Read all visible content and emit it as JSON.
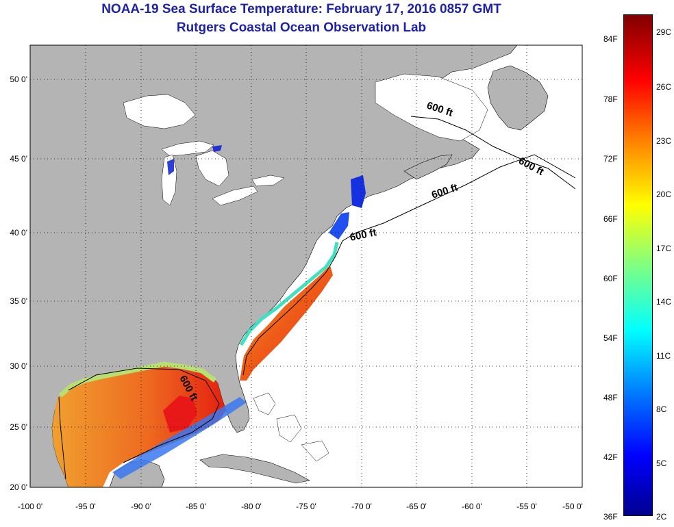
{
  "title": "NOAA-19 Sea Surface Temperature:  February 17, 2016 0857 GMT",
  "subtitle": "Rutgers Coastal Ocean Observation Lab",
  "colors": {
    "title": "#1e22a8",
    "land": "#b4b4b4",
    "ocean_nodata": "#ffffff",
    "lake": "#ffffff"
  },
  "map": {
    "lon_range": [
      -100,
      -50
    ],
    "lat_range": [
      20,
      52
    ],
    "x_ticks": [
      "-100 0'",
      "-95 0'",
      "-90 0'",
      "-85 0'",
      "-80 0'",
      "-75 0'",
      "-70 0'",
      "-65 0'",
      "-60 0'",
      "-55 0'",
      "-50 0'"
    ],
    "y_ticks": [
      "20 0'",
      "25 0'",
      "30 0'",
      "35 0'",
      "40 0'",
      "45 0'",
      "50 0'"
    ],
    "grid": "dotted",
    "contour_labels": [
      "600 ft",
      "600 ft",
      "600 ft",
      "600 ft",
      "600 ft"
    ]
  },
  "colorbar": {
    "fahrenheit_labels": [
      "84F",
      "78F",
      "72F",
      "66F",
      "60F",
      "54F",
      "48F",
      "42F",
      "36F"
    ],
    "celsius_labels": [
      "29C",
      "26C",
      "23C",
      "20C",
      "17C",
      "14C",
      "11C",
      "8C",
      "5C",
      "2C"
    ],
    "stops": [
      "#800000",
      "#ff0000",
      "#ff8000",
      "#ffff00",
      "#80ff80",
      "#00ffff",
      "#0080ff",
      "#0000ff",
      "#00008f"
    ]
  }
}
